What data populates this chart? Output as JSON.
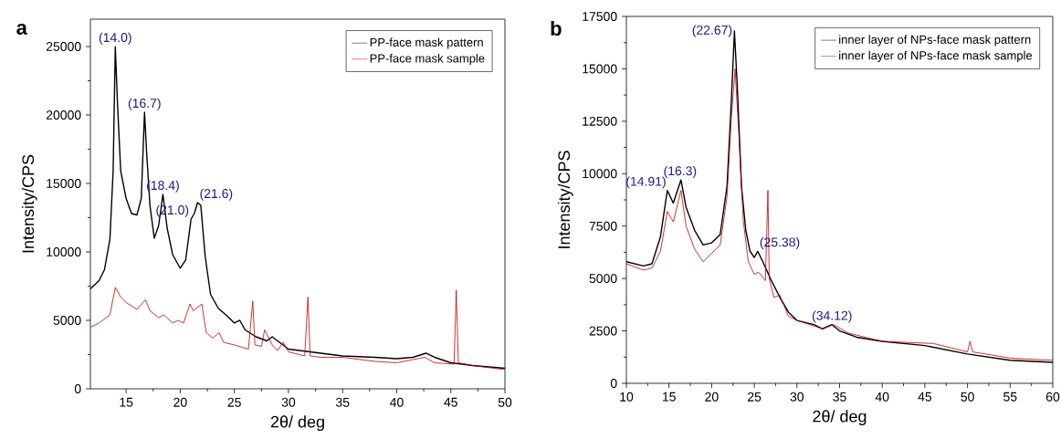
{
  "chart_data": [
    {
      "type": "line",
      "title": "a",
      "xlabel": "2θ/ deg",
      "ylabel": "Intensity/CPS",
      "xlim": [
        11.7,
        50
      ],
      "ylim": [
        0,
        27000
      ],
      "xticks": [
        15,
        20,
        25,
        30,
        35,
        40,
        45,
        50
      ],
      "yticks": [
        0,
        5000,
        10000,
        15000,
        20000,
        25000
      ],
      "legend": "top right",
      "series": [
        {
          "name": "PP-face mask pattern",
          "color": "#000000",
          "x": [
            11.7,
            12.5,
            13.0,
            13.5,
            13.8,
            14.0,
            14.2,
            14.5,
            15.0,
            15.5,
            16.0,
            16.4,
            16.7,
            16.9,
            17.2,
            17.6,
            18.0,
            18.4,
            18.8,
            19.3,
            20.0,
            20.5,
            21.0,
            21.3,
            21.6,
            21.9,
            22.3,
            22.8,
            23.5,
            24.5,
            25.0,
            25.5,
            26.0,
            27.0,
            28.0,
            28.5,
            29.5,
            30.0,
            32.0,
            35,
            38,
            40,
            41.5,
            42.7,
            43.5,
            45,
            47,
            50
          ],
          "values": [
            7300,
            7900,
            8700,
            10900,
            15900,
            25000,
            20900,
            15900,
            13900,
            12800,
            12700,
            13900,
            20200,
            17200,
            13400,
            11000,
            11900,
            14200,
            11700,
            9800,
            8800,
            9400,
            12400,
            12800,
            13600,
            13400,
            9700,
            6900,
            5900,
            5200,
            4800,
            5000,
            4300,
            3800,
            3500,
            3800,
            3200,
            2900,
            2700,
            2400,
            2300,
            2200,
            2300,
            2600,
            2300,
            1900,
            1700,
            1500
          ]
        },
        {
          "name": "PP-face mask sample",
          "color": "#c00000",
          "x": [
            11.7,
            12.5,
            13.5,
            14.0,
            14.5,
            15.0,
            16.0,
            16.8,
            17.2,
            18.0,
            18.5,
            19.3,
            19.8,
            20.3,
            20.9,
            21.2,
            22.0,
            22.4,
            23.0,
            23.6,
            24.0,
            25.0,
            26.3,
            26.7,
            26.9,
            27.5,
            27.8,
            28.5,
            29.0,
            29.5,
            30.0,
            31.5,
            31.8,
            32.0,
            33,
            35,
            38,
            40,
            42.6,
            43.5,
            45.3,
            45.5,
            45.7,
            47,
            50
          ],
          "values": [
            4500,
            4800,
            5400,
            7400,
            6700,
            6300,
            5800,
            6500,
            5700,
            5200,
            5400,
            4800,
            5000,
            4800,
            6200,
            5700,
            6200,
            4100,
            3700,
            4100,
            3400,
            3200,
            2900,
            6400,
            3200,
            3100,
            4300,
            3200,
            2800,
            3400,
            2700,
            2400,
            6700,
            2400,
            2300,
            2300,
            2000,
            1900,
            2300,
            1900,
            1800,
            7200,
            1900,
            1700,
            1400
          ]
        }
      ],
      "annotations": [
        {
          "text": "(14.0)",
          "x": 14.0,
          "y": 25000
        },
        {
          "text": "(16.7)",
          "x": 16.7,
          "y": 20200
        },
        {
          "text": "(18.4)",
          "x": 18.4,
          "y": 14200
        },
        {
          "text": "(21.0)",
          "x": 21.0,
          "y": 12400
        },
        {
          "text": "(21.6)",
          "x": 21.6,
          "y": 13600
        }
      ]
    },
    {
      "type": "line",
      "title": "b",
      "xlabel": "2θ/ deg",
      "ylabel": "Intensity/CPS",
      "xlim": [
        10,
        60
      ],
      "ylim": [
        0,
        17500
      ],
      "xticks": [
        10,
        15,
        20,
        25,
        30,
        35,
        40,
        45,
        50,
        55,
        60
      ],
      "yticks": [
        0,
        2500,
        5000,
        7500,
        10000,
        12500,
        15000,
        17500
      ],
      "legend": "top right",
      "series": [
        {
          "name": "inner layer of NPs-face mask pattern",
          "color": "#000000",
          "x": [
            10,
            12,
            13,
            14,
            14.8,
            15.5,
            16.4,
            17,
            18,
            19,
            20,
            21,
            21.8,
            22.3,
            22.67,
            23.0,
            23.5,
            24.0,
            24.5,
            25.0,
            25.4,
            26.0,
            27.0,
            28.0,
            29.0,
            30.0,
            32.0,
            33.0,
            34.1,
            35.0,
            37,
            40,
            45,
            50,
            55,
            60
          ],
          "values": [
            5800,
            5600,
            5700,
            7000,
            9200,
            8600,
            9700,
            8400,
            7300,
            6600,
            6700,
            7100,
            9400,
            13400,
            16800,
            14200,
            9400,
            7300,
            6300,
            6000,
            6300,
            5800,
            4900,
            4100,
            3400,
            3000,
            2800,
            2600,
            2800,
            2500,
            2200,
            2000,
            1800,
            1400,
            1100,
            1000
          ]
        },
        {
          "name": "inner layer of NPs-face mask sample",
          "color": "#c00000",
          "x": [
            10,
            12,
            13,
            14,
            14.8,
            15.5,
            16.4,
            17,
            18,
            19,
            20,
            21,
            21.8,
            22.3,
            22.75,
            23.2,
            23.7,
            24.3,
            25.0,
            25.5,
            26.3,
            26.6,
            26.75,
            27.3,
            28,
            29,
            30,
            33,
            34.3,
            36,
            40,
            46,
            50,
            50.3,
            50.6,
            55,
            60
          ],
          "values": [
            5700,
            5400,
            5500,
            6300,
            8200,
            7700,
            9200,
            7500,
            6400,
            5800,
            6200,
            6600,
            8900,
            12600,
            15000,
            11800,
            7800,
            5800,
            5200,
            5300,
            4900,
            9200,
            5000,
            4100,
            4200,
            3200,
            3000,
            2600,
            2800,
            2400,
            2000,
            1900,
            1500,
            2000,
            1500,
            1200,
            1100
          ]
        }
      ],
      "annotations": [
        {
          "text": "(14.91)",
          "x": 14.91,
          "y": 9200
        },
        {
          "text": "(16.3)",
          "x": 16.3,
          "y": 9700
        },
        {
          "text": "(22.67)",
          "x": 22.67,
          "y": 16800
        },
        {
          "text": "(25.38)",
          "x": 25.38,
          "y": 6300
        },
        {
          "text": "(34.12)",
          "x": 34.12,
          "y": 2800
        }
      ]
    }
  ]
}
